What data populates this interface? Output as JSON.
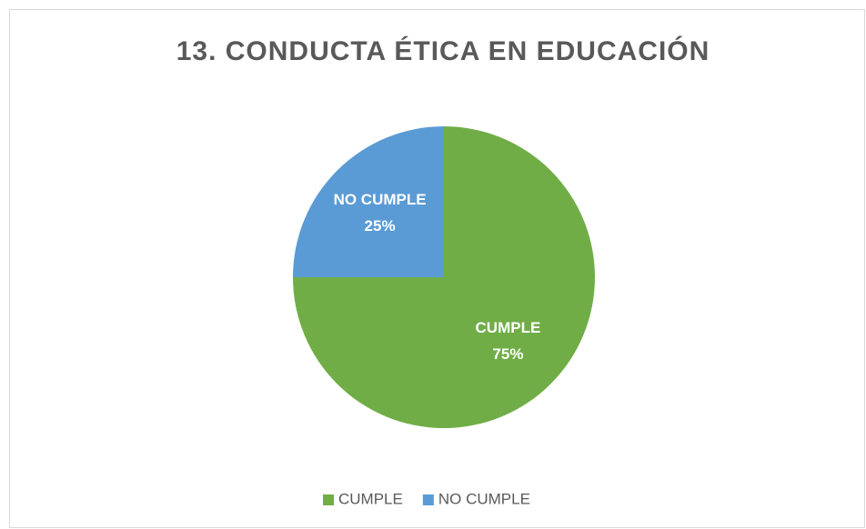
{
  "chart_data": {
    "type": "pie",
    "title": "13. CONDUCTA ÉTICA EN EDUCACIÓN",
    "categories": [
      "CUMPLE",
      "NO CUMPLE"
    ],
    "values": [
      75,
      25
    ],
    "value_labels": [
      "75%",
      "25%"
    ],
    "colors": [
      "#70ad47",
      "#5b9bd5"
    ],
    "legend": "bottom"
  }
}
